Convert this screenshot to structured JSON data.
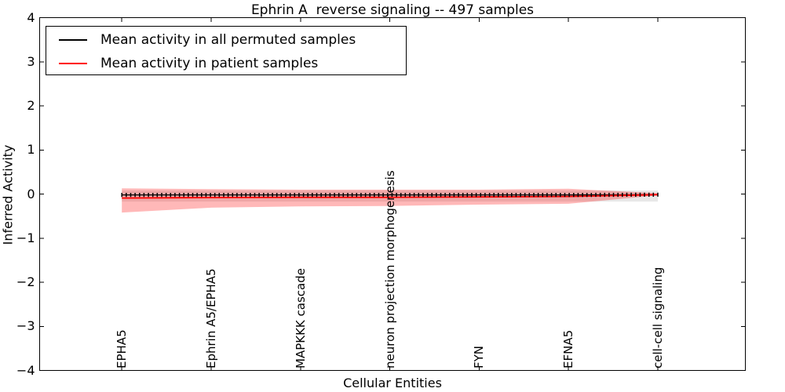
{
  "title": "Ephrin A  reverse signaling -- 497 samples",
  "axes": {
    "xlabel": "Cellular Entities",
    "ylabel": "Inferred Activity",
    "ytick_labels": [
      "4",
      "3",
      "2",
      "1",
      "0",
      "−1",
      "−2",
      "−3",
      "−4"
    ],
    "yticks": [
      4,
      3,
      2,
      1,
      0,
      -1,
      -2,
      -3,
      -4
    ],
    "ylim": [
      -4,
      4
    ]
  },
  "legend": {
    "items": [
      {
        "label": "Mean activity in all permuted samples",
        "color": "#000000"
      },
      {
        "label": "Mean activity in patient samples",
        "color": "#ff0000"
      }
    ]
  },
  "chart_data": {
    "type": "line",
    "title": "Ephrin A  reverse signaling -- 497 samples",
    "xlabel": "Cellular Entities",
    "ylabel": "Inferred Activity",
    "categories": [
      "EPHA5",
      "Ephrin A5/EPHA5",
      "MAPKKK cascade",
      "neuron projection morphogenesis",
      "FYN",
      "EFNA5",
      "cell-cell signaling"
    ],
    "x": [
      0,
      1,
      2,
      3,
      4,
      5,
      6
    ],
    "xlim": [
      -0.92,
      6.98
    ],
    "ylim": [
      -4,
      4
    ],
    "yticks": [
      4,
      3,
      2,
      1,
      0,
      -1,
      -2,
      -3,
      -4
    ],
    "grid": false,
    "legend_position": "upper left",
    "series": [
      {
        "name": "Mean activity in all permuted samples",
        "color": "#000000",
        "marker": "|",
        "line_width": 1.3,
        "values": [
          -0.02,
          -0.02,
          -0.02,
          -0.02,
          -0.02,
          -0.02,
          -0.015
        ]
      },
      {
        "name": "Mean activity in patient samples",
        "color": "#ff0000",
        "marker": null,
        "line_width": 1.8,
        "values": [
          -0.09,
          -0.08,
          -0.075,
          -0.075,
          -0.065,
          -0.055,
          -0.015
        ]
      }
    ],
    "bands": [
      {
        "name": "permuted-samples-std-band",
        "color": "128,128,128",
        "alpha": 0.18,
        "upper": [
          0.08,
          0.08,
          0.08,
          0.08,
          0.08,
          0.08,
          0.08
        ],
        "lower": [
          -0.17,
          -0.17,
          -0.17,
          -0.17,
          -0.17,
          -0.17,
          -0.17
        ]
      },
      {
        "name": "patient-samples-std-band",
        "color": "255,0,0",
        "alpha": 0.28,
        "upper": [
          0.13,
          0.11,
          0.1,
          0.1,
          0.1,
          0.12,
          0.02
        ],
        "lower": [
          -0.42,
          -0.31,
          -0.28,
          -0.27,
          -0.24,
          -0.22,
          -0.03
        ]
      }
    ]
  }
}
